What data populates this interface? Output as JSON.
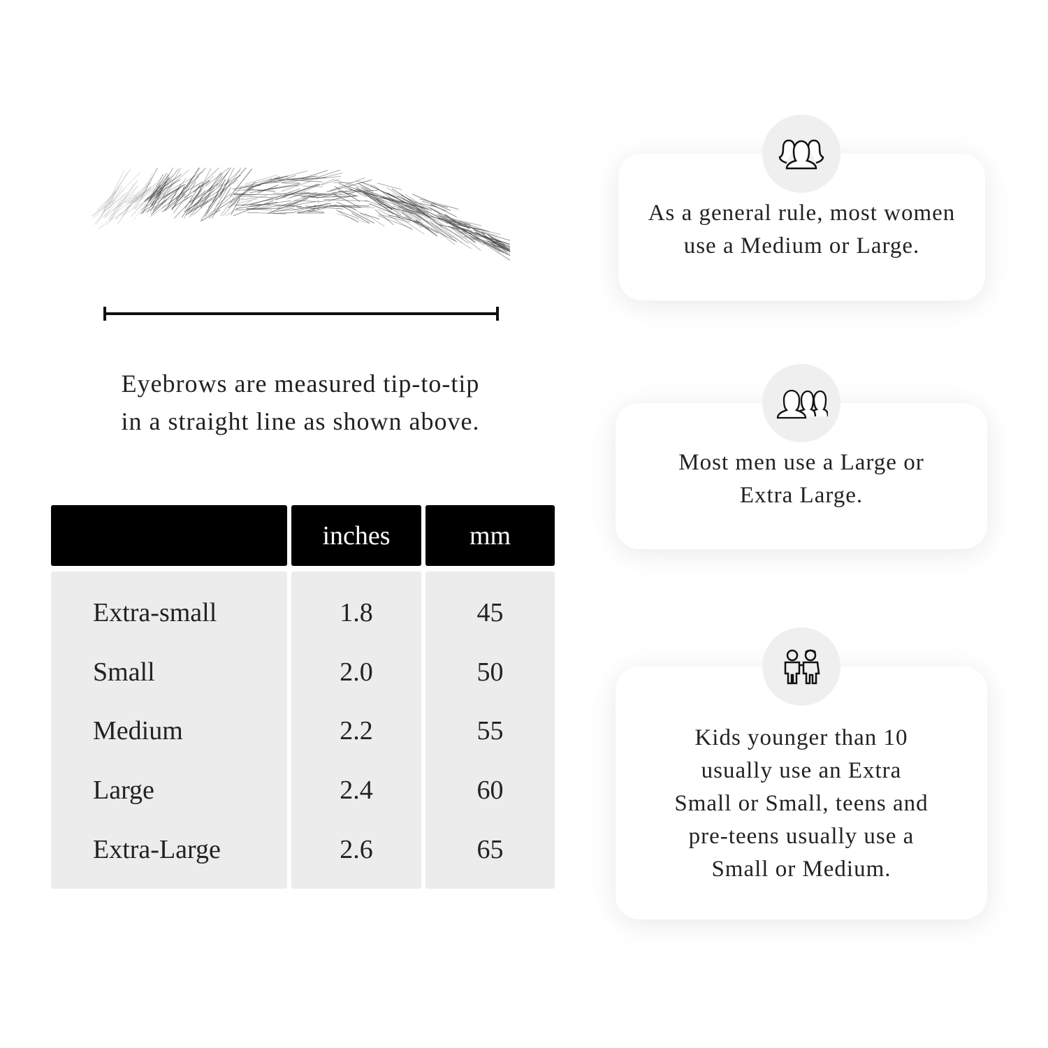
{
  "caption": {
    "line1": "Eyebrows are measured tip-to-tip",
    "line2": "in a straight line as shown above."
  },
  "table": {
    "headers": [
      "",
      "inches",
      "mm"
    ],
    "rows": [
      {
        "size": "Extra-small",
        "inches": "1.8",
        "mm": "45"
      },
      {
        "size": "Small",
        "inches": "2.0",
        "mm": "50"
      },
      {
        "size": "Medium",
        "inches": "2.2",
        "mm": "55"
      },
      {
        "size": "Large",
        "inches": "2.4",
        "mm": "60"
      },
      {
        "size": "Extra-Large",
        "inches": "2.6",
        "mm": "65"
      }
    ]
  },
  "cards": [
    {
      "icon": "women-group-icon",
      "text_lines": [
        "As a general rule, most women",
        "use a Medium or Large."
      ]
    },
    {
      "icon": "men-group-icon",
      "text_lines": [
        "Most men use a Large or",
        "Extra Large."
      ]
    },
    {
      "icon": "kids-icon",
      "text_lines": [
        "Kids younger than 10",
        "usually use an Extra",
        "Small or Small, teens and",
        "pre-teens usually use a",
        "Small or Medium."
      ]
    }
  ]
}
